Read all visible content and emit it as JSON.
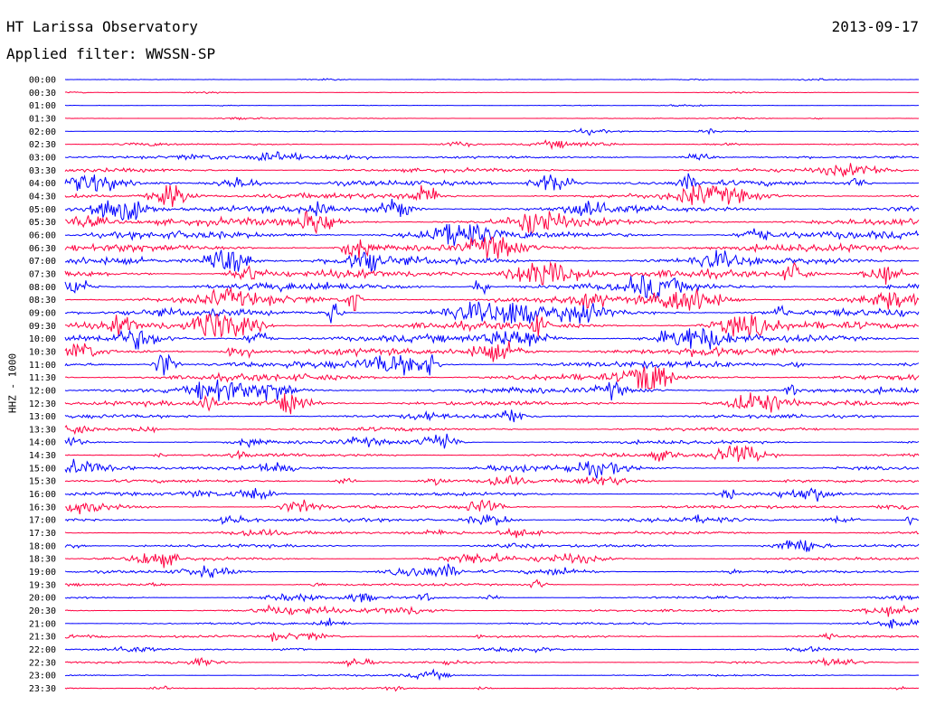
{
  "header": {
    "station": "HT Larissa Observatory",
    "date": "2013-09-17",
    "filter_label": "Applied filter: WWSSN-SP"
  },
  "chart_data": {
    "type": "line",
    "title": "HT Larissa Observatory",
    "subtitle": "Applied filter: WWSSN-SP",
    "ylabel": "HHZ - 1000",
    "xlabel": "",
    "date": "2013-09-17",
    "trace_colors": [
      "#0000ff",
      "#ff0040"
    ],
    "row_labels": [
      "00:00",
      "00:30",
      "01:00",
      "01:30",
      "02:00",
      "02:30",
      "03:00",
      "03:30",
      "04:00",
      "04:30",
      "05:00",
      "05:30",
      "06:00",
      "06:30",
      "07:00",
      "07:30",
      "08:00",
      "08:30",
      "09:00",
      "09:30",
      "10:00",
      "10:30",
      "11:00",
      "11:30",
      "12:00",
      "12:30",
      "13:00",
      "13:30",
      "14:00",
      "14:30",
      "15:00",
      "15:30",
      "16:00",
      "16:30",
      "17:00",
      "17:30",
      "18:00",
      "18:30",
      "19:00",
      "19:30",
      "20:00",
      "20:30",
      "21:00",
      "21:30",
      "22:00",
      "22:30",
      "23:00",
      "23:30"
    ],
    "noise_level": [
      0.4,
      0.5,
      0.4,
      0.6,
      1.1,
      1.4,
      2.2,
      3.5,
      5.0,
      5.5,
      6.5,
      7.0,
      7.0,
      7.0,
      7.0,
      7.0,
      7.0,
      7.0,
      7.0,
      7.0,
      6.5,
      6.5,
      6.5,
      6.5,
      5.5,
      4.2,
      3.5,
      3.5,
      3.5,
      3.2,
      3.0,
      3.0,
      3.0,
      3.0,
      3.0,
      3.0,
      2.8,
      2.8,
      2.6,
      2.4,
      2.2,
      2.2,
      2.0,
      2.0,
      1.8,
      1.8,
      1.6,
      1.5
    ],
    "grid": false
  }
}
